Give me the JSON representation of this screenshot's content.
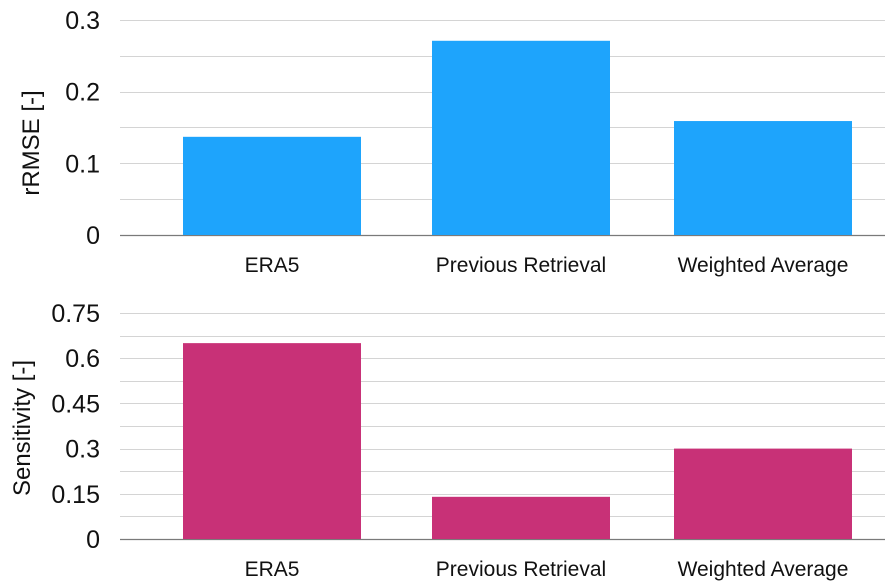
{
  "chart_data": [
    {
      "type": "bar",
      "ylabel": "rRMSE [-]",
      "categories": [
        "ERA5",
        "Previous Retrieval",
        "Weighted Average"
      ],
      "values": [
        0.137,
        0.271,
        0.159
      ],
      "ylim": [
        0,
        0.3
      ],
      "yticks": [
        0,
        0.1,
        0.2,
        0.3
      ],
      "ytick_labels": [
        "0",
        "0.1",
        "0.2",
        "0.3"
      ],
      "grid": true,
      "color": "#1ea4fc"
    },
    {
      "type": "bar",
      "ylabel": "Sensitivity [-]",
      "categories": [
        "ERA5",
        "Previous Retrieval",
        "Weighted Average"
      ],
      "values": [
        0.65,
        0.14,
        0.3
      ],
      "ylim": [
        0,
        0.75
      ],
      "yticks": [
        0,
        0.15,
        0.3,
        0.45,
        0.6,
        0.75
      ],
      "ytick_labels": [
        "0",
        "0.15",
        "0.3",
        "0.45",
        "0.6",
        "0.75"
      ],
      "grid": true,
      "color": "#c83177"
    }
  ]
}
